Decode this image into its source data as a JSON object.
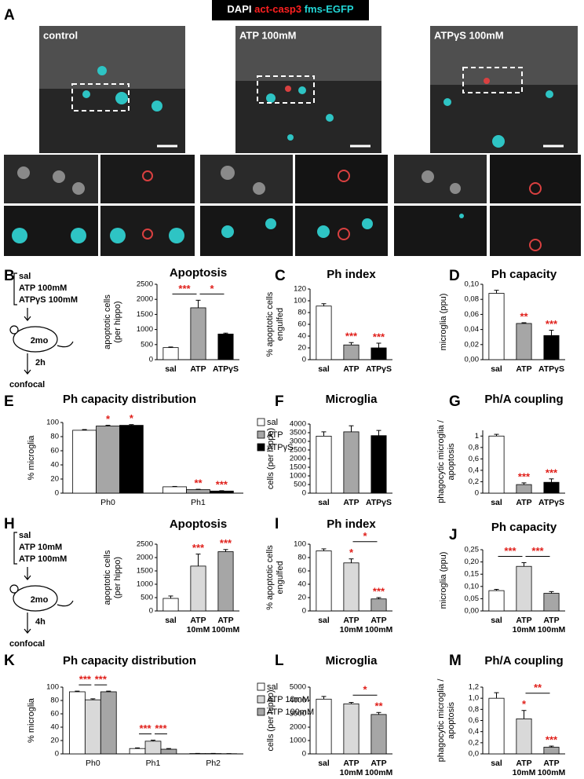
{
  "header": {
    "labels": [
      "DAPI",
      "act-casp3",
      "fms-EGFP"
    ]
  },
  "panel_letters": [
    "A",
    "B",
    "C",
    "D",
    "E",
    "F",
    "G",
    "H",
    "I",
    "J",
    "K",
    "L",
    "M"
  ],
  "images": [
    "control",
    "ATP 100mM",
    "ATPγS 100mM"
  ],
  "schematics": [
    {
      "treatments": [
        "sal",
        "ATP 100mM",
        "ATPγS 100mM"
      ],
      "age": "2mo",
      "time": "2h",
      "readout": "confocal"
    },
    {
      "treatments": [
        "sal",
        "ATP 10mM",
        "ATP 100mM"
      ],
      "age": "2mo",
      "time": "4h",
      "readout": "confocal"
    }
  ],
  "chart_data": [
    {
      "type": "bar",
      "title": "Apoptosis",
      "ylabel": [
        "apoptotic cells",
        "(per hippo)"
      ],
      "categories": [
        "sal",
        "ATP",
        "ATPγS"
      ],
      "values": [
        400,
        1720,
        850
      ],
      "errors": [
        20,
        250,
        30
      ],
      "colors": [
        "#ffffff",
        "#a6a6a6",
        "#000000"
      ],
      "ylim": [
        0,
        2500
      ],
      "yticks": [
        0,
        500,
        1000,
        1500,
        2000,
        2500
      ],
      "annotations": [
        {
          "text": "*",
          "bracket": [
            1,
            2
          ]
        },
        {
          "text": "***",
          "bracket": [
            0,
            1
          ]
        }
      ]
    },
    {
      "type": "bar",
      "title": "Ph index",
      "ylabel": [
        "% apoptotic cells",
        "engulfed"
      ],
      "categories": [
        "sal",
        "ATP",
        "ATPγS"
      ],
      "values": [
        91,
        25,
        20
      ],
      "errors": [
        4,
        4,
        8
      ],
      "colors": [
        "#ffffff",
        "#a6a6a6",
        "#000000"
      ],
      "ylim": [
        0,
        120
      ],
      "yticks": [
        0,
        20,
        40,
        60,
        80,
        100,
        120
      ],
      "annotations": [
        {
          "text": "***",
          "category": 1
        },
        {
          "text": "***",
          "category": 2
        }
      ]
    },
    {
      "type": "bar",
      "title": "Ph capacity",
      "ylabel": [
        "microglia (ppu)"
      ],
      "categories": [
        "sal",
        "ATP",
        "ATPγS"
      ],
      "values": [
        0.088,
        0.048,
        0.032
      ],
      "errors": [
        0.004,
        0.001,
        0.007
      ],
      "colors": [
        "#ffffff",
        "#a6a6a6",
        "#000000"
      ],
      "ylim": [
        0,
        0.1
      ],
      "yticks": [
        {
          "value": 0,
          "label": "0,00"
        },
        {
          "value": 0.02,
          "label": "0,02"
        },
        {
          "value": 0.04,
          "label": "0,04"
        },
        {
          "value": 0.06,
          "label": "0,06"
        },
        {
          "value": 0.08,
          "label": "0,08"
        },
        {
          "value": 0.1,
          "label": "0,10"
        }
      ],
      "annotations": [
        {
          "text": "**",
          "category": 1
        },
        {
          "text": "***",
          "category": 2
        }
      ]
    },
    {
      "type": "bar",
      "title": "Ph capacity distribution",
      "ylabel": [
        "% microglia"
      ],
      "categories": [
        "Ph0",
        "Ph1"
      ],
      "series": [
        {
          "name": "sal",
          "color": "#ffffff",
          "values": [
            89,
            9
          ],
          "errors": [
            1,
            0.5
          ]
        },
        {
          "name": "ATP",
          "color": "#a6a6a6",
          "values": [
            95,
            5
          ],
          "errors": [
            1,
            0.5
          ]
        },
        {
          "name": "ATPγS",
          "color": "#000000",
          "values": [
            96,
            3
          ],
          "errors": [
            1,
            0.5
          ]
        }
      ],
      "ylim": [
        0,
        100
      ],
      "yticks": [
        0,
        20,
        40,
        60,
        80,
        100
      ],
      "legend": "right",
      "annotations": [
        {
          "text": "*",
          "category": 0,
          "series": 1
        },
        {
          "text": "*",
          "category": 0,
          "series": 2
        },
        {
          "text": "**",
          "category": 1,
          "series": 1
        },
        {
          "text": "***",
          "category": 1,
          "series": 2
        }
      ]
    },
    {
      "type": "bar",
      "title": "Microglia",
      "ylabel": [
        "cells (per hippo)"
      ],
      "categories": [
        "sal",
        "ATP",
        "ATPγS"
      ],
      "values": [
        3300,
        3550,
        3330
      ],
      "errors": [
        250,
        350,
        300
      ],
      "colors": [
        "#ffffff",
        "#a6a6a6",
        "#000000"
      ],
      "ylim": [
        0,
        4000
      ],
      "yticks": [
        0,
        500,
        1000,
        1500,
        2000,
        2500,
        3000,
        3500,
        4000
      ]
    },
    {
      "type": "bar",
      "title": "Ph/A coupling",
      "ylabel": [
        "phagocytic microglia /",
        "apoptosis"
      ],
      "categories": [
        "sal",
        "ATP",
        "ATPγS"
      ],
      "values": [
        1.0,
        0.15,
        0.19
      ],
      "errors": [
        0.03,
        0.03,
        0.06
      ],
      "colors": [
        "#ffffff",
        "#a6a6a6",
        "#000000"
      ],
      "ylim": [
        0,
        1.1
      ],
      "yticks": [
        0,
        {
          "value": 0.2,
          "label": "0,2"
        },
        {
          "value": 0.4,
          "label": "0,4"
        },
        {
          "value": 0.6,
          "label": "0,6"
        },
        {
          "value": 0.8,
          "label": "0,8"
        },
        1
      ],
      "annotations": [
        {
          "text": "***",
          "category": 1
        },
        {
          "text": "***",
          "category": 2
        }
      ]
    },
    {
      "type": "bar",
      "title": "Apoptosis",
      "ylabel": [
        "apoptotic cells",
        "(per hippo)"
      ],
      "categories": [
        "sal",
        [
          "ATP",
          "10mM"
        ],
        [
          "ATP",
          "100mM"
        ]
      ],
      "values": [
        470,
        1680,
        2220
      ],
      "errors": [
        90,
        450,
        80
      ],
      "colors": [
        "#ffffff",
        "#d9d9d9",
        "#a6a6a6"
      ],
      "ylim": [
        0,
        2500
      ],
      "yticks": [
        0,
        500,
        1000,
        1500,
        2000,
        2500
      ],
      "annotations": [
        {
          "text": "***",
          "category": 1
        },
        {
          "text": "***",
          "category": 2
        }
      ]
    },
    {
      "type": "bar",
      "title": "Ph index",
      "ylabel": [
        "% apoptotic cells",
        "engulfed"
      ],
      "categories": [
        "sal",
        [
          "ATP",
          "10mM"
        ],
        [
          "ATP",
          "100mM"
        ]
      ],
      "values": [
        90,
        72,
        18
      ],
      "errors": [
        3,
        6,
        2
      ],
      "colors": [
        "#ffffff",
        "#d9d9d9",
        "#a6a6a6"
      ],
      "ylim": [
        0,
        100
      ],
      "yticks": [
        0,
        20,
        40,
        60,
        80,
        100
      ],
      "annotations": [
        {
          "text": "*",
          "category": 1
        },
        {
          "text": "***",
          "category": 2
        },
        {
          "text": "*",
          "bracket": [
            1,
            2
          ]
        }
      ]
    },
    {
      "type": "bar",
      "title": "Ph capacity",
      "ylabel": [
        "microglia (ppu)"
      ],
      "categories": [
        "sal",
        [
          "ATP",
          "10mM"
        ],
        [
          "ATP",
          "100mM"
        ]
      ],
      "values": [
        0.083,
        0.182,
        0.072
      ],
      "errors": [
        0.005,
        0.015,
        0.007
      ],
      "colors": [
        "#ffffff",
        "#d9d9d9",
        "#a6a6a6"
      ],
      "ylim": [
        0,
        0.25
      ],
      "yticks": [
        {
          "value": 0,
          "label": "0,00"
        },
        {
          "value": 0.05,
          "label": "0,05"
        },
        {
          "value": 0.1,
          "label": "0,10"
        },
        {
          "value": 0.15,
          "label": "0,15"
        },
        {
          "value": 0.2,
          "label": "0,20"
        },
        {
          "value": 0.25,
          "label": "0,25"
        }
      ],
      "annotations": [
        {
          "text": "***",
          "bracket": [
            0,
            1
          ]
        },
        {
          "text": "***",
          "bracket": [
            1,
            2
          ]
        }
      ]
    },
    {
      "type": "bar",
      "title": "Ph capacity distribution",
      "ylabel": [
        "% microglia"
      ],
      "categories": [
        "Ph0",
        "Ph1",
        "Ph2"
      ],
      "series": [
        {
          "name": "sal",
          "color": "#ffffff",
          "values": [
            93,
            8,
            0.5
          ],
          "errors": [
            1,
            1,
            0.2
          ]
        },
        {
          "name": "ATP 10mM",
          "color": "#d9d9d9",
          "values": [
            81,
            19,
            0.5
          ],
          "errors": [
            1.5,
            1.5,
            0.2
          ]
        },
        {
          "name": "ATP 100mM",
          "color": "#a6a6a6",
          "values": [
            93,
            7,
            0.3
          ],
          "errors": [
            1,
            1,
            0.1
          ]
        }
      ],
      "ylim": [
        0,
        100
      ],
      "yticks": [
        0,
        20,
        40,
        60,
        80,
        100
      ],
      "legend": "right",
      "annotations": [
        {
          "text": "***",
          "category": 0,
          "bracket": [
            0,
            1
          ]
        },
        {
          "text": "***",
          "category": 0,
          "bracket": [
            1,
            2
          ]
        },
        {
          "text": "***",
          "category": 1,
          "bracket": [
            0,
            1
          ]
        },
        {
          "text": "***",
          "category": 1,
          "bracket": [
            1,
            2
          ]
        }
      ]
    },
    {
      "type": "bar",
      "title": "Microglia",
      "ylabel": [
        "cells (per hippo)"
      ],
      "categories": [
        "sal",
        [
          "ATP",
          "10mM"
        ],
        [
          "ATP",
          "100mM"
        ]
      ],
      "values": [
        4100,
        3750,
        2950
      ],
      "errors": [
        200,
        100,
        150
      ],
      "colors": [
        "#ffffff",
        "#d9d9d9",
        "#a6a6a6"
      ],
      "ylim": [
        0,
        5000
      ],
      "yticks": [
        0,
        1000,
        2000,
        3000,
        4000,
        5000
      ],
      "annotations": [
        {
          "text": "**",
          "category": 2
        },
        {
          "text": "*",
          "bracket": [
            1,
            2
          ]
        }
      ]
    },
    {
      "type": "bar",
      "title": "Ph/A coupling",
      "ylabel": [
        "phagocytic microglia /",
        "apoptosis"
      ],
      "categories": [
        "sal",
        [
          "ATP",
          "10mM"
        ],
        [
          "ATP",
          "100mM"
        ]
      ],
      "values": [
        1.0,
        0.63,
        0.12
      ],
      "errors": [
        0.1,
        0.15,
        0.02
      ],
      "colors": [
        "#ffffff",
        "#d9d9d9",
        "#a6a6a6"
      ],
      "ylim": [
        0,
        1.2
      ],
      "yticks": [
        {
          "value": 0,
          "label": "0,0"
        },
        {
          "value": 0.2,
          "label": "0,2"
        },
        {
          "value": 0.4,
          "label": "0,4"
        },
        {
          "value": 0.6,
          "label": "0,6"
        },
        {
          "value": 0.8,
          "label": "0,8"
        },
        {
          "value": 1,
          "label": "1,0"
        },
        {
          "value": 1.2,
          "label": "1,2"
        }
      ],
      "annotations": [
        {
          "text": "*",
          "category": 1
        },
        {
          "text": "***",
          "category": 2
        },
        {
          "text": "**",
          "bracket": [
            1,
            2
          ]
        }
      ]
    }
  ]
}
